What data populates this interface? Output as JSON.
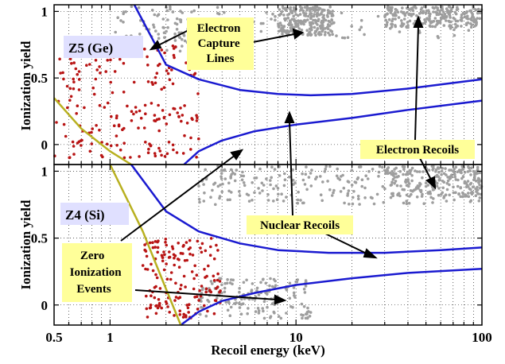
{
  "chart_data": {
    "type": "scatter",
    "xlabel": "Recoil energy (keV)",
    "x_scale": "log",
    "xlim": [
      0.5,
      100
    ],
    "x_ticks": [
      0.5,
      1,
      10,
      100
    ],
    "x_tick_labels": [
      "0.5",
      "1",
      "10",
      "100"
    ],
    "grid": "dotted vertical",
    "colors": {
      "electron_recoils": "#9e9e9e",
      "nuclear_recoils": "#b81414",
      "ec_lines": "#1a1ad0",
      "zero_ionization_line": "#b8b020",
      "label_bg": "#ffff99",
      "panel_label_bg": "#e0e0ff"
    },
    "annotations": {
      "electron_capture": "Electron\nCapture\nLines",
      "electron_recoils": "Electron Recoils",
      "nuclear_recoils": "Nuclear Recoils",
      "zero_ionization": "Zero\nIonization\nEvents"
    },
    "panels": [
      {
        "label": "Z5 (Ge)",
        "ylabel": "Ionization yield",
        "ylim": [
          -0.15,
          1.05
        ],
        "y_ticks": [
          0,
          0.5,
          1
        ],
        "y_tick_labels": [
          "0",
          "0.5",
          "1"
        ],
        "nr_band_upper": {
          "x": [
            1.35,
            2,
            3,
            5,
            8,
            12,
            20,
            40,
            100
          ],
          "y": [
            1.05,
            0.6,
            0.49,
            0.41,
            0.38,
            0.37,
            0.38,
            0.42,
            0.49
          ]
        },
        "nr_band_lower": {
          "x": [
            2.5,
            3,
            4,
            6,
            10,
            20,
            40,
            100
          ],
          "y": [
            -0.15,
            -0.05,
            0.03,
            0.1,
            0.15,
            0.2,
            0.26,
            0.33
          ]
        },
        "zero_ionization_line": {
          "x": [
            0.5,
            0.7,
            1.0,
            1.3
          ],
          "y": [
            0.35,
            0.12,
            -0.05,
            -0.15
          ]
        },
        "electron_recoil_clusters": [
          {
            "x_range": [
              1.5,
              3
            ],
            "y_range": [
              0.7,
              1.05
            ],
            "n": 50
          },
          {
            "x_range": [
              8,
              16
            ],
            "y_range": [
              0.82,
              1.05
            ],
            "n": 260
          },
          {
            "x_range": [
              30,
              100
            ],
            "y_range": [
              0.88,
              1.05
            ],
            "n": 230
          },
          {
            "x_range": [
              1,
              100
            ],
            "y_range": [
              0.8,
              1.05
            ],
            "n": 100
          }
        ],
        "nuclear_recoil_cluster": {
          "x_range": [
            0.5,
            3
          ],
          "y_range": [
            -0.1,
            0.75
          ],
          "n": 200
        }
      },
      {
        "label": "Z4 (Si)",
        "ylabel": "Ionization yield",
        "ylim": [
          -0.15,
          1.05
        ],
        "y_ticks": [
          0,
          0.5,
          1
        ],
        "y_tick_labels": [
          "0",
          "0.5",
          "1"
        ],
        "nr_band_upper": {
          "x": [
            1.3,
            2,
            3,
            5,
            8,
            15,
            30,
            60,
            100
          ],
          "y": [
            1.05,
            0.7,
            0.55,
            0.46,
            0.41,
            0.39,
            0.39,
            0.41,
            0.43
          ]
        },
        "nr_band_lower": {
          "x": [
            2.4,
            3,
            4,
            6,
            10,
            20,
            40,
            100
          ],
          "y": [
            -0.15,
            -0.05,
            0.03,
            0.09,
            0.15,
            0.2,
            0.24,
            0.27
          ]
        },
        "zero_ionization_line": {
          "x": [
            1.0,
            1.5,
            2.0,
            2.4
          ],
          "y": [
            1.05,
            0.55,
            0.12,
            -0.15
          ]
        },
        "electron_recoil_clusters": [
          {
            "x_range": [
              3,
              100
            ],
            "y_range": [
              0.75,
              1.05
            ],
            "n": 260
          },
          {
            "x_range": [
              30,
              100
            ],
            "y_range": [
              0.8,
              1.05
            ],
            "n": 200
          },
          {
            "x_range": [
              3,
              12
            ],
            "y_range": [
              -0.1,
              0.2
            ],
            "n": 160
          }
        ],
        "nuclear_recoil_cluster": {
          "x_range": [
            1.5,
            4
          ],
          "y_range": [
            -0.1,
            0.5
          ],
          "n": 160
        }
      }
    ]
  }
}
